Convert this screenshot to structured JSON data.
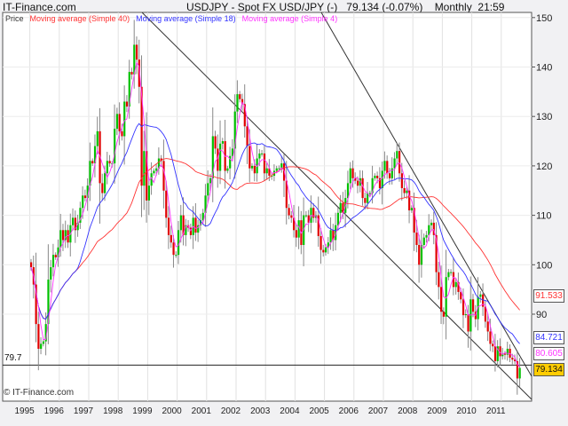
{
  "header": {
    "site": "IT-Finance.com",
    "title": "USDJPY - Spot FX USD/JPY (-)",
    "quote": "79.134 (-0.07%)",
    "period": "Monthly",
    "time": "21:59"
  },
  "watermark": "© IT-Finance.com",
  "colors": {
    "up": "#00c000",
    "down": "#e00000",
    "ma40": "#ff3333",
    "ma18": "#3333ff",
    "ma4": "#ff33ff",
    "last": "#ffcc00"
  },
  "chart_data": {
    "type": "candlestick",
    "legend": [
      "Price",
      "Moving average (Simple 40)",
      "Moving average (Simple 18)",
      "Moving average (Simple 4)"
    ],
    "ylim": [
      73,
      151
    ],
    "yticks": [
      90,
      100,
      110,
      120,
      130,
      140,
      150
    ],
    "xticks": [
      "1995",
      "1996",
      "1997",
      "1998",
      "1999",
      "2000",
      "2001",
      "2002",
      "2003",
      "2004",
      "2005",
      "2006",
      "2007",
      "2008",
      "2009",
      "2010",
      "2011"
    ],
    "start": "1995-01",
    "monthly_close": [
      99.5,
      96,
      88,
      83,
      84,
      84.5,
      88,
      97,
      99.5,
      102,
      101.5,
      103.5,
      107,
      105,
      107,
      104.5,
      108,
      109.5,
      107,
      108.5,
      111.5,
      114,
      113.5,
      116,
      121,
      120.5,
      124,
      127,
      116.5,
      114.5,
      118.5,
      121,
      120.5,
      120.5,
      127.5,
      130.5,
      127,
      126,
      133,
      132,
      139,
      138.5,
      144.5,
      141.5,
      136,
      116,
      123,
      113,
      116,
      118.5,
      119,
      119.5,
      121.5,
      121,
      115,
      109.5,
      106,
      104.5,
      102,
      102,
      107,
      110,
      106,
      108,
      107.5,
      106,
      109.5,
      106.5,
      108,
      109,
      110.5,
      114,
      116.5,
      117.5,
      126,
      123.5,
      119,
      124.5,
      125,
      119,
      119.5,
      122,
      123.5,
      131,
      134.5,
      133.5,
      132.5,
      128,
      124,
      119.5,
      120,
      118.5,
      121.5,
      122.5,
      122.5,
      118.5,
      119.5,
      118,
      118,
      119,
      119.5,
      119.5,
      120.5,
      117,
      111.5,
      110,
      109.5,
      107,
      105.5,
      109,
      104,
      110,
      110,
      108.5,
      111.5,
      109.5,
      110,
      105.8,
      103,
      102.5,
      103.5,
      104.5,
      107,
      105,
      108,
      110.5,
      112.5,
      110.5,
      113.5,
      116.5,
      119.5,
      117.5,
      117,
      116,
      117.5,
      113.5,
      112.5,
      114.5,
      114.5,
      117.5,
      118,
      117.5,
      115.5,
      119,
      121,
      118.5,
      117.5,
      119.5,
      121.5,
      123,
      118.5,
      115.5,
      114.5,
      115,
      111,
      111.5,
      106.5,
      104,
      100,
      104,
      105.5,
      106,
      108,
      108.5,
      106,
      98.5,
      95.5,
      90.5,
      89.5,
      97.5,
      98.5,
      98.5,
      95.5,
      96.5,
      94.5,
      93,
      89.8,
      90,
      86.5,
      93,
      90.5,
      89,
      93.5,
      94,
      91.5,
      88.5,
      86.5,
      84,
      83.5,
      80.5,
      83.5,
      81.5,
      82,
      81.8,
      83,
      81.2,
      80.8,
      80.5,
      77,
      79.134
    ],
    "horizontal_line": {
      "label": "79.7",
      "value": 79.7
    },
    "last_values": {
      "ma40": "91.533",
      "ma18": "84.721",
      "ma4": "80.605",
      "price": "79.134"
    }
  }
}
